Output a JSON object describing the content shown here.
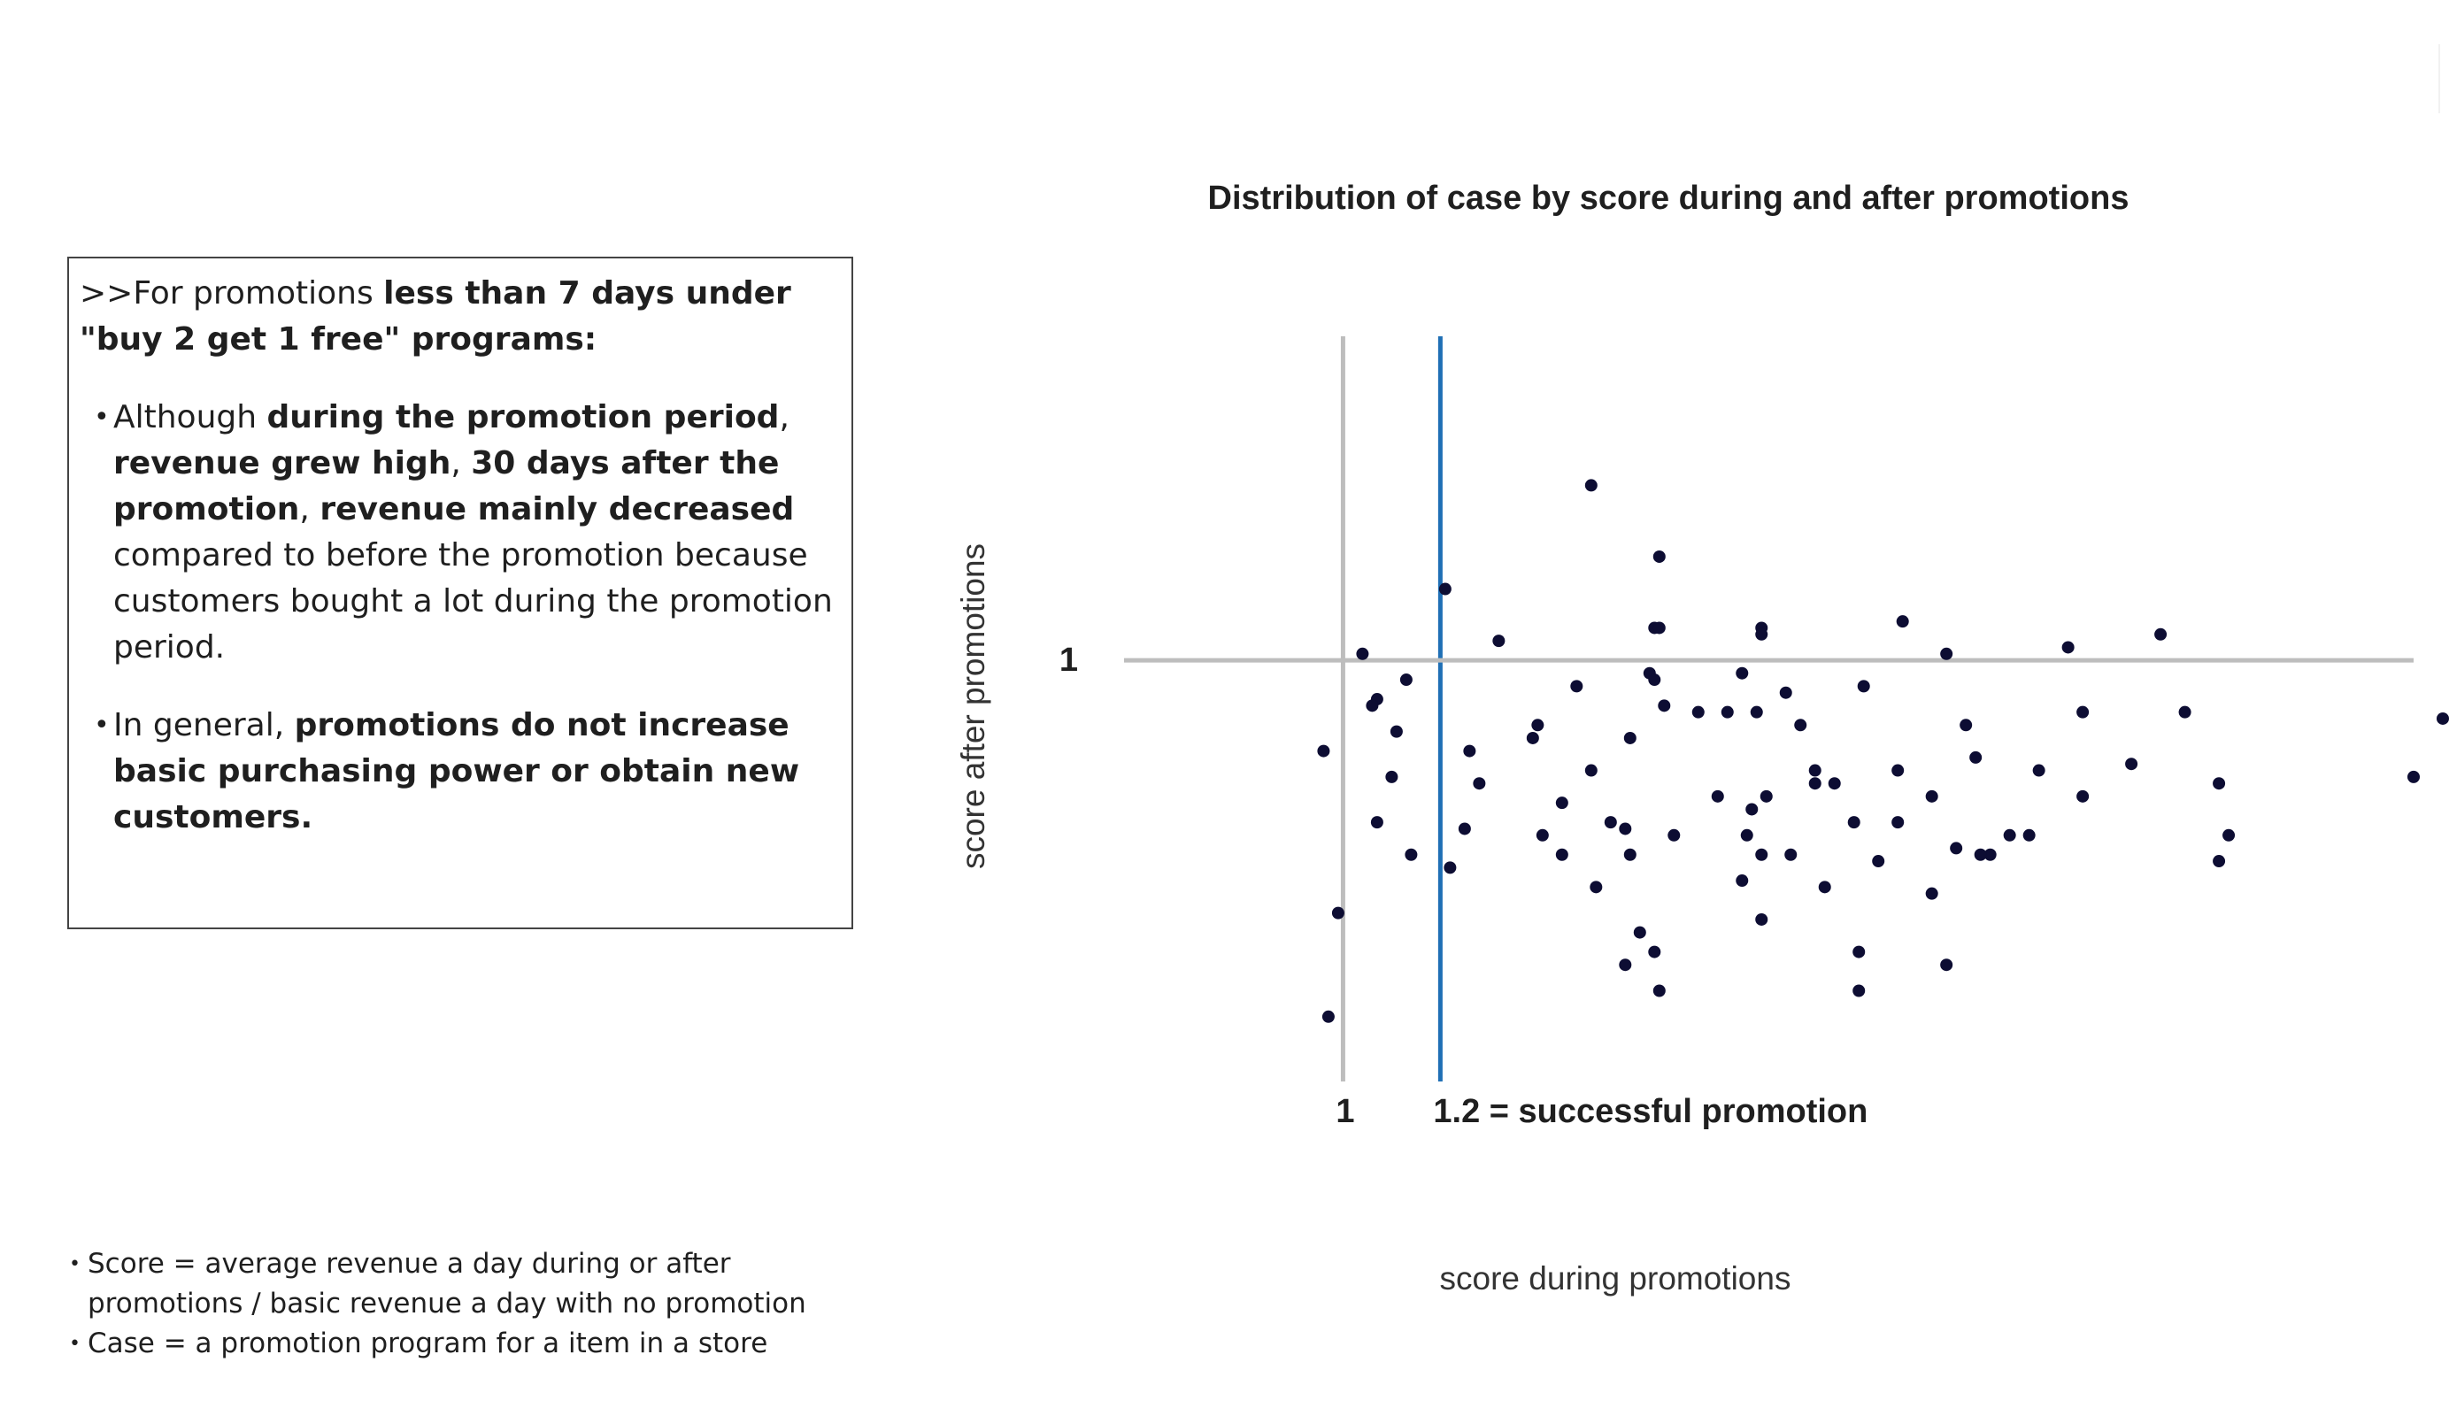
{
  "insight": {
    "intro_prefix": ">>For promotions ",
    "intro_bold": "less than 7 days under \"buy 2 get 1 free\" programs:",
    "bullet1": {
      "t1": "Although ",
      "b1": "during the promotion period",
      "t2": ", ",
      "b2": "revenue grew high",
      "t3": ", ",
      "b3": "30 days after the promotion",
      "t4": ", ",
      "b4": "revenue mainly decreased",
      "t5": " compared to before the promotion because customers bought a lot during the promotion period."
    },
    "bullet2": {
      "t1": "In general, ",
      "b1": "promotions do not increase basic purchasing power or obtain new customers."
    }
  },
  "notes": [
    "Score  = average revenue a day during or after promotions /  basic revenue a day with no promotion",
    "Case = a promotion program for a item in a store"
  ],
  "chart_data": {
    "type": "scatter",
    "title": "Distribution of case by score during and after promotions",
    "xlabel": "score during promotions",
    "ylabel": "score after promotions",
    "xlim": [
      0.55,
      3.2
    ],
    "ylim": [
      0.35,
      1.5
    ],
    "reference_lines": [
      {
        "axis": "x",
        "value": 1.0,
        "label": "1",
        "color": "#bdbdbd"
      },
      {
        "axis": "x",
        "value": 1.2,
        "label": "1.2 = successful promotion",
        "color": "#1f6fb5"
      },
      {
        "axis": "y",
        "value": 1.0,
        "label": "1",
        "color": "#bdbdbd"
      }
    ],
    "marker_color": "#0d0d33",
    "points": [
      [
        1.51,
        1.27
      ],
      [
        1.65,
        1.16
      ],
      [
        1.21,
        1.11
      ],
      [
        1.64,
        1.05
      ],
      [
        1.65,
        1.05
      ],
      [
        1.86,
        1.05
      ],
      [
        2.15,
        1.06
      ],
      [
        2.68,
        1.04
      ],
      [
        1.32,
        1.03
      ],
      [
        1.86,
        1.04
      ],
      [
        1.04,
        1.01
      ],
      [
        2.24,
        1.01
      ],
      [
        2.49,
        1.02
      ],
      [
        1.63,
        0.98
      ],
      [
        1.82,
        0.98
      ],
      [
        1.13,
        0.97
      ],
      [
        1.48,
        0.96
      ],
      [
        1.64,
        0.97
      ],
      [
        1.91,
        0.95
      ],
      [
        2.07,
        0.96
      ],
      [
        1.07,
        0.94
      ],
      [
        1.66,
        0.93
      ],
      [
        1.73,
        0.92
      ],
      [
        1.79,
        0.92
      ],
      [
        1.85,
        0.92
      ],
      [
        2.52,
        0.92
      ],
      [
        2.73,
        0.92
      ],
      [
        1.06,
        0.93
      ],
      [
        3.26,
        0.91
      ],
      [
        1.11,
        0.89
      ],
      [
        1.4,
        0.9
      ],
      [
        1.94,
        0.9
      ],
      [
        2.28,
        0.9
      ],
      [
        1.39,
        0.88
      ],
      [
        1.59,
        0.88
      ],
      [
        0.96,
        0.86
      ],
      [
        1.26,
        0.86
      ],
      [
        2.3,
        0.85
      ],
      [
        1.51,
        0.83
      ],
      [
        1.97,
        0.83
      ],
      [
        2.14,
        0.83
      ],
      [
        2.62,
        0.84
      ],
      [
        2.43,
        0.83
      ],
      [
        1.1,
        0.82
      ],
      [
        1.97,
        0.81
      ],
      [
        2.01,
        0.81
      ],
      [
        2.8,
        0.81
      ],
      [
        3.2,
        0.82
      ],
      [
        1.28,
        0.81
      ],
      [
        1.77,
        0.79
      ],
      [
        2.21,
        0.79
      ],
      [
        2.52,
        0.79
      ],
      [
        1.87,
        0.79
      ],
      [
        1.45,
        0.78
      ],
      [
        1.84,
        0.77
      ],
      [
        1.07,
        0.75
      ],
      [
        1.55,
        0.75
      ],
      [
        2.05,
        0.75
      ],
      [
        2.14,
        0.75
      ],
      [
        2.82,
        0.73
      ],
      [
        1.25,
        0.74
      ],
      [
        1.58,
        0.74
      ],
      [
        1.41,
        0.73
      ],
      [
        1.68,
        0.73
      ],
      [
        1.83,
        0.73
      ],
      [
        2.37,
        0.73
      ],
      [
        2.41,
        0.73
      ],
      [
        2.26,
        0.71
      ],
      [
        2.33,
        0.7
      ],
      [
        2.31,
        0.7
      ],
      [
        1.45,
        0.7
      ],
      [
        1.59,
        0.7
      ],
      [
        1.86,
        0.7
      ],
      [
        1.92,
        0.7
      ],
      [
        2.1,
        0.69
      ],
      [
        1.22,
        0.68
      ],
      [
        2.8,
        0.69
      ],
      [
        1.82,
        0.66
      ],
      [
        1.52,
        0.65
      ],
      [
        1.99,
        0.65
      ],
      [
        2.21,
        0.64
      ],
      [
        0.99,
        0.61
      ],
      [
        1.86,
        0.6
      ],
      [
        1.61,
        0.58
      ],
      [
        2.06,
        0.55
      ],
      [
        1.64,
        0.55
      ],
      [
        1.58,
        0.53
      ],
      [
        2.24,
        0.53
      ],
      [
        1.65,
        0.49
      ],
      [
        2.06,
        0.49
      ],
      [
        0.97,
        0.45
      ],
      [
        1.14,
        0.7
      ]
    ]
  }
}
